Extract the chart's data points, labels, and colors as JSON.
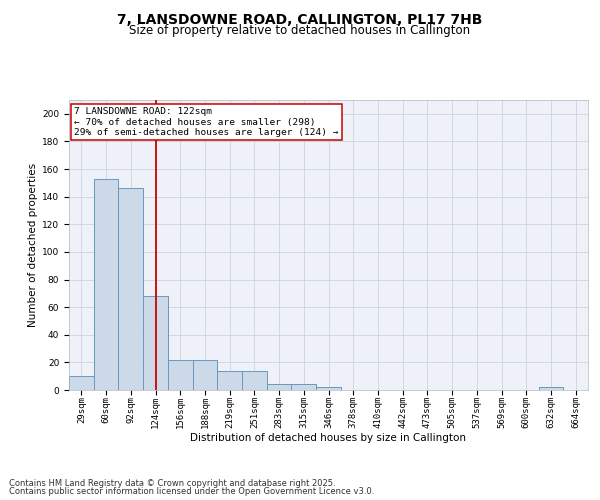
{
  "title_line1": "7, LANSDOWNE ROAD, CALLINGTON, PL17 7HB",
  "title_line2": "Size of property relative to detached houses in Callington",
  "xlabel": "Distribution of detached houses by size in Callington",
  "ylabel": "Number of detached properties",
  "categories": [
    "29sqm",
    "60sqm",
    "92sqm",
    "124sqm",
    "156sqm",
    "188sqm",
    "219sqm",
    "251sqm",
    "283sqm",
    "315sqm",
    "346sqm",
    "378sqm",
    "410sqm",
    "442sqm",
    "473sqm",
    "505sqm",
    "537sqm",
    "569sqm",
    "600sqm",
    "632sqm",
    "664sqm"
  ],
  "values": [
    10,
    153,
    146,
    68,
    22,
    22,
    14,
    14,
    4,
    4,
    2,
    0,
    0,
    0,
    0,
    0,
    0,
    0,
    0,
    2,
    0
  ],
  "bar_color": "#ccd9e8",
  "bar_edge_color": "#6699bb",
  "vline_x": 3.0,
  "vline_color": "#cc0000",
  "annotation_text": "7 LANSDOWNE ROAD: 122sqm\n← 70% of detached houses are smaller (298)\n29% of semi-detached houses are larger (124) →",
  "annotation_box_facecolor": "#ffffff",
  "annotation_box_edgecolor": "#cc0000",
  "ylim": [
    0,
    210
  ],
  "yticks": [
    0,
    20,
    40,
    60,
    80,
    100,
    120,
    140,
    160,
    180,
    200
  ],
  "footer_line1": "Contains HM Land Registry data © Crown copyright and database right 2025.",
  "footer_line2": "Contains public sector information licensed under the Open Government Licence v3.0.",
  "bg_color": "#eef2f8",
  "grid_color": "#c5cdd8",
  "title_fontsize": 10,
  "subtitle_fontsize": 8.5,
  "axis_label_fontsize": 7.5,
  "tick_fontsize": 6.5,
  "annotation_fontsize": 6.8,
  "footer_fontsize": 6.0
}
